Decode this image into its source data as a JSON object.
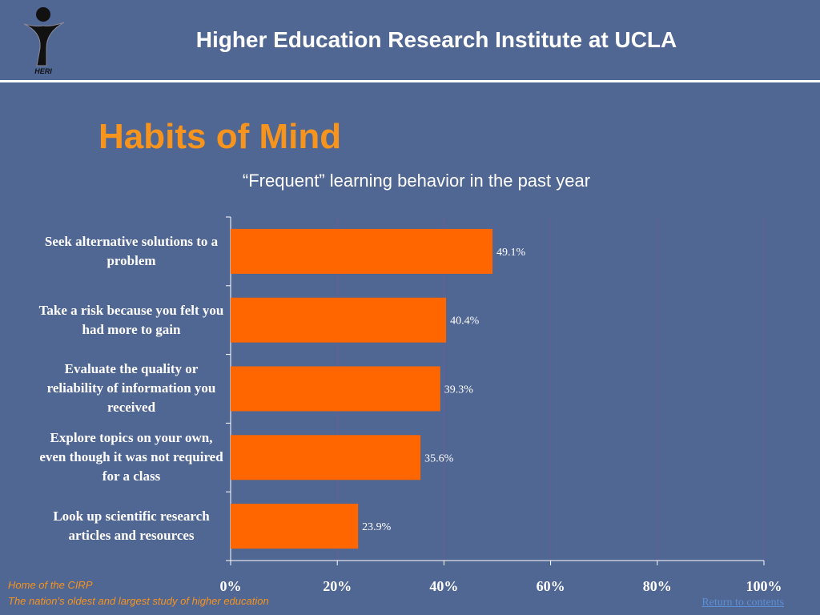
{
  "header": {
    "title": "Higher Education Research Institute at UCLA",
    "logo_text": "HERI"
  },
  "footer": {
    "lines": [
      "Home of the CIRP",
      "The nation’s oldest and largest study of higher education"
    ],
    "link": "Return to contents"
  },
  "chart_data": {
    "type": "bar",
    "orientation": "horizontal",
    "title": "Habits of Mind",
    "subtitle": "“Frequent” learning behavior in the past year",
    "categories": [
      "Seek alternative solutions to a problem",
      "Take a risk because you felt you had more to gain",
      "Evaluate the quality or reliability of information you received",
      "Explore topics on your own, even though it was not required for a class",
      "Look up scientific research articles and resources"
    ],
    "values": [
      49.1,
      40.4,
      39.3,
      35.6,
      23.9
    ],
    "value_labels": [
      "49.1%",
      "40.4%",
      "39.3%",
      "35.6%",
      "23.9%"
    ],
    "color": "#ff6600",
    "xlim": [
      0,
      100
    ],
    "xticks": [
      {
        "value": 0,
        "label": "0%"
      },
      {
        "value": 20,
        "label": "20%"
      },
      {
        "value": 40,
        "label": "40%"
      },
      {
        "value": 60,
        "label": "60%"
      },
      {
        "value": 80,
        "label": "80%"
      },
      {
        "value": 100,
        "label": "100%"
      }
    ],
    "grid": true
  }
}
